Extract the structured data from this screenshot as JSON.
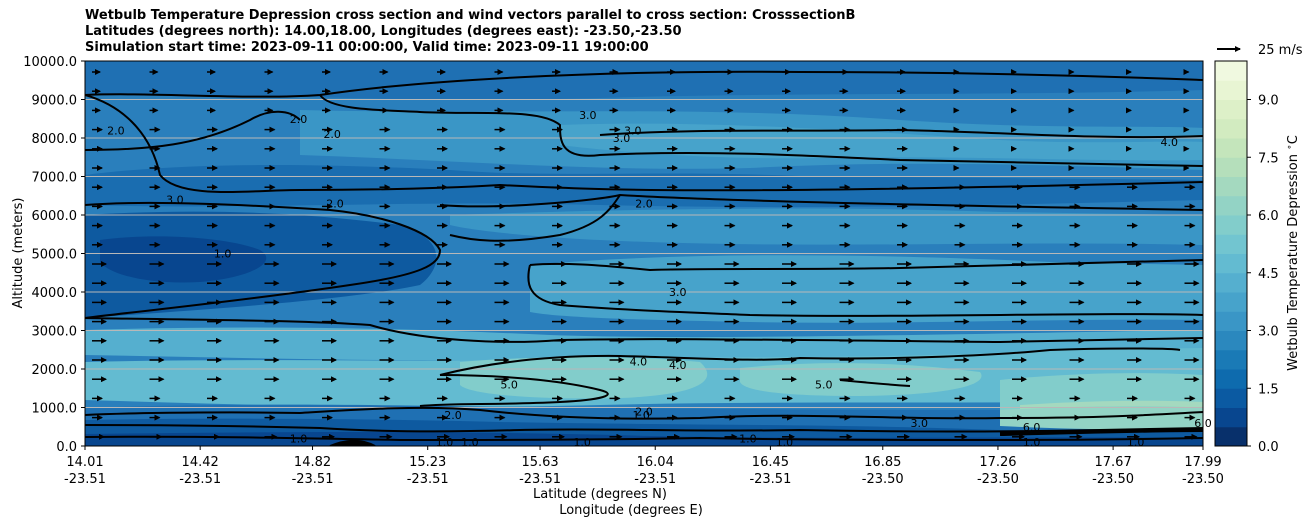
{
  "chart_data": {
    "type": "contour",
    "title_lines": [
      "Wetbulb Temperature Depression cross section and wind vectors parallel to cross section: CrosssectionB",
      "Latitudes (degrees north): 14.00,18.00, Longitudes (degrees east): -23.50,-23.50",
      "Simulation start time: 2023-09-11 00:00:00, Valid time: 2023-09-11 19:00:00"
    ],
    "ylabel": "Altitude (meters)",
    "xlabel_line1": "Latitude (degrees N)",
    "xlabel_line2": "Longitude (degrees E)",
    "ylim": [
      0,
      10000
    ],
    "y_ticks": [
      "0.0",
      "1000.0",
      "2000.0",
      "3000.0",
      "4000.0",
      "5000.0",
      "6000.0",
      "7000.0",
      "8000.0",
      "9000.0",
      "10000.0"
    ],
    "x_range_lat": [
      14.01,
      17.99
    ],
    "x_ticks": [
      {
        "lat": "14.01",
        "lon": "-23.51"
      },
      {
        "lat": "14.42",
        "lon": "-23.51"
      },
      {
        "lat": "14.82",
        "lon": "-23.51"
      },
      {
        "lat": "15.23",
        "lon": "-23.51"
      },
      {
        "lat": "15.63",
        "lon": "-23.51"
      },
      {
        "lat": "16.04",
        "lon": "-23.51"
      },
      {
        "lat": "16.45",
        "lon": "-23.51"
      },
      {
        "lat": "16.85",
        "lon": "-23.50"
      },
      {
        "lat": "17.26",
        "lon": "-23.50"
      },
      {
        "lat": "17.67",
        "lon": "-23.50"
      },
      {
        "lat": "17.99",
        "lon": "-23.50"
      }
    ],
    "grid": "horizontal",
    "colorbar": {
      "label": "Wetbulb Temperature Depression $^\\circ$C",
      "min": 0.0,
      "max": 10.0,
      "ticks": [
        "0.0",
        "1.5",
        "3.0",
        "4.5",
        "6.0",
        "7.5",
        "9.0"
      ],
      "colors": [
        "#08306b",
        "#08468f",
        "#0b5aa2",
        "#0e6bae",
        "#1a7ab6",
        "#2b88be",
        "#3a96c6",
        "#47a3cb",
        "#55afcf",
        "#63bbd1",
        "#72c5d0",
        "#82cdcb",
        "#93d3c5",
        "#a4d9bf",
        "#b5dfbb",
        "#c4e5bb",
        "#d2ebc0",
        "#ddf0c8",
        "#e8f5d3",
        "#f0f9e0"
      ]
    },
    "wind_key": {
      "label": "25 m/s",
      "value": 25
    },
    "contour_labels": [
      {
        "text": "2.0",
        "lat": 14.12,
        "alt": 8200
      },
      {
        "text": "2.0",
        "lat": 14.77,
        "alt": 8500
      },
      {
        "text": "2.0",
        "lat": 14.89,
        "alt": 8100
      },
      {
        "text": "3.0",
        "lat": 15.8,
        "alt": 8600
      },
      {
        "text": "3.0",
        "lat": 15.96,
        "alt": 8200
      },
      {
        "text": "3.0",
        "lat": 15.92,
        "alt": 8000
      },
      {
        "text": "4.0",
        "lat": 17.87,
        "alt": 7900
      },
      {
        "text": "3.0",
        "lat": 14.33,
        "alt": 6400
      },
      {
        "text": "2.0",
        "lat": 14.9,
        "alt": 6300
      },
      {
        "text": "2.0",
        "lat": 16.0,
        "alt": 6300
      },
      {
        "text": "1.0",
        "lat": 14.5,
        "alt": 5000
      },
      {
        "text": "3.0",
        "lat": 16.12,
        "alt": 4000
      },
      {
        "text": "4.0",
        "lat": 15.98,
        "alt": 2200
      },
      {
        "text": "4.0",
        "lat": 16.12,
        "alt": 2100
      },
      {
        "text": "5.0",
        "lat": 15.52,
        "alt": 1600
      },
      {
        "text": "5.0",
        "lat": 16.64,
        "alt": 1600
      },
      {
        "text": "2.0",
        "lat": 15.32,
        "alt": 800
      },
      {
        "text": "2.0",
        "lat": 16.0,
        "alt": 900
      },
      {
        "text": "1.0",
        "lat": 15.99,
        "alt": 800
      },
      {
        "text": "1.0",
        "lat": 14.77,
        "alt": 200
      },
      {
        "text": "1.0",
        "lat": 15.29,
        "alt": 100
      },
      {
        "text": "1.0",
        "lat": 15.38,
        "alt": 100
      },
      {
        "text": "1.0",
        "lat": 15.78,
        "alt": 100
      },
      {
        "text": "1.0",
        "lat": 16.37,
        "alt": 200
      },
      {
        "text": "1.0",
        "lat": 16.5,
        "alt": 100
      },
      {
        "text": "3.0",
        "lat": 16.98,
        "alt": 600
      },
      {
        "text": "6.0",
        "lat": 17.38,
        "alt": 500
      },
      {
        "text": "1.0",
        "lat": 17.38,
        "alt": 100
      },
      {
        "text": "1.0",
        "lat": 17.75,
        "alt": 100
      },
      {
        "text": "6.0",
        "lat": 17.99,
        "alt": 600
      }
    ]
  }
}
